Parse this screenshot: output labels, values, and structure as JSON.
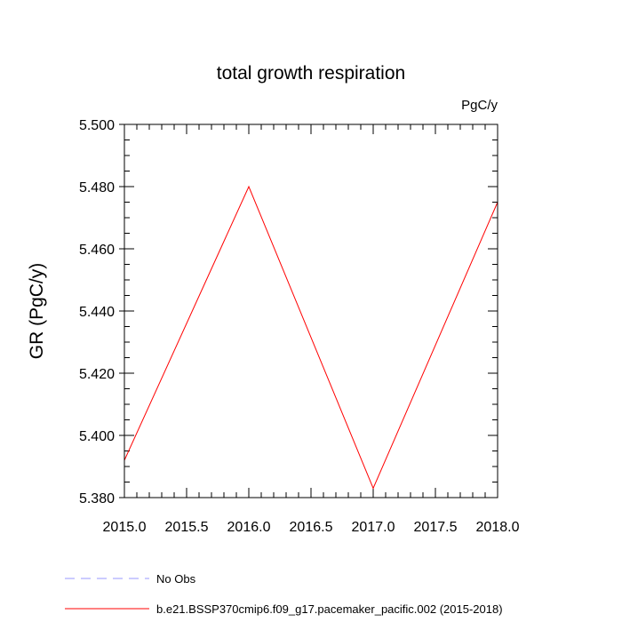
{
  "chart_data": {
    "type": "line",
    "title": "total growth respiration",
    "units_label": "PgC/y",
    "ylabel": "GR  (PgC/y)",
    "xlabel": "",
    "xlim": [
      2015.0,
      2018.0
    ],
    "ylim": [
      5.38,
      5.5
    ],
    "x_ticks": [
      2015.0,
      2015.5,
      2016.0,
      2016.5,
      2017.0,
      2017.5,
      2018.0
    ],
    "x_tick_labels": [
      "2015.0",
      "2015.5",
      "2016.0",
      "2016.5",
      "2017.0",
      "2017.5",
      "2018.0"
    ],
    "y_ticks": [
      5.38,
      5.4,
      5.42,
      5.44,
      5.46,
      5.48,
      5.5
    ],
    "y_tick_labels": [
      "5.380",
      "5.400",
      "5.420",
      "5.440",
      "5.460",
      "5.480",
      "5.500"
    ],
    "grid": false,
    "legend_position": "bottom",
    "series": [
      {
        "name": "b.e21.BSSP370cmip6.f09_g17.pacemaker_pacific.002 (2015-2018)",
        "color": "#ff0000",
        "style": "solid",
        "x": [
          2015.0,
          2016.0,
          2017.0,
          2018.0
        ],
        "y": [
          5.392,
          5.48,
          5.383,
          5.475
        ]
      }
    ],
    "legend": [
      {
        "label": "No Obs",
        "color": "#9999ff",
        "style": "dashed"
      },
      {
        "label": "b.e21.BSSP370cmip6.f09_g17.pacemaker_pacific.002 (2015-2018)",
        "color": "#ff0000",
        "style": "solid"
      }
    ]
  }
}
